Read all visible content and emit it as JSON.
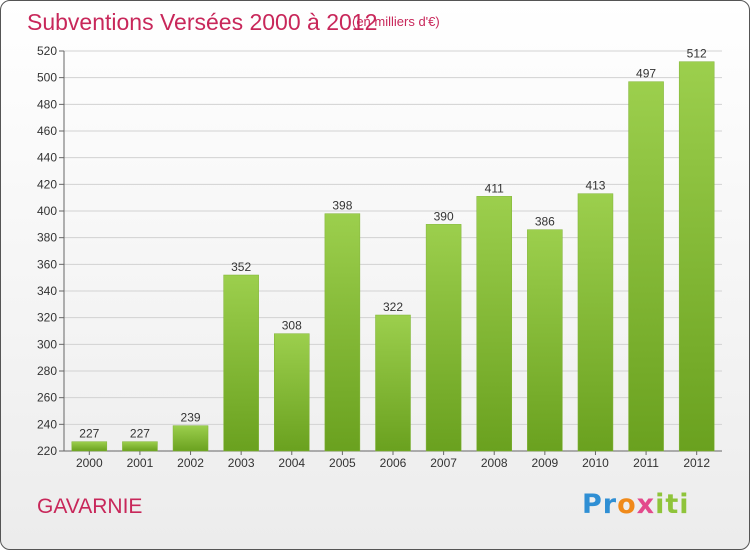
{
  "header": {
    "title": "Subventions Versées 2000 à 2012",
    "subtitle": "(en milliers d'€)"
  },
  "footer": {
    "commune": "GAVARNIE",
    "logo": {
      "parts": [
        "Pr",
        "o",
        "x",
        "iti"
      ]
    }
  },
  "chart_data": {
    "type": "bar",
    "title": "Subventions Versées 2000 à 2012",
    "subtitle": "(en milliers d'€)",
    "categories": [
      "2000",
      "2001",
      "2002",
      "2003",
      "2004",
      "2005",
      "2006",
      "2007",
      "2008",
      "2009",
      "2010",
      "2011",
      "2012"
    ],
    "values": [
      227,
      227,
      239,
      352,
      308,
      398,
      322,
      390,
      411,
      386,
      413,
      497,
      512
    ],
    "ylim": [
      220,
      520
    ],
    "yticks": [
      220,
      240,
      260,
      280,
      300,
      320,
      340,
      360,
      380,
      400,
      420,
      440,
      460,
      480,
      500,
      520
    ],
    "grid": true,
    "bar_color": "#8cc43c"
  }
}
